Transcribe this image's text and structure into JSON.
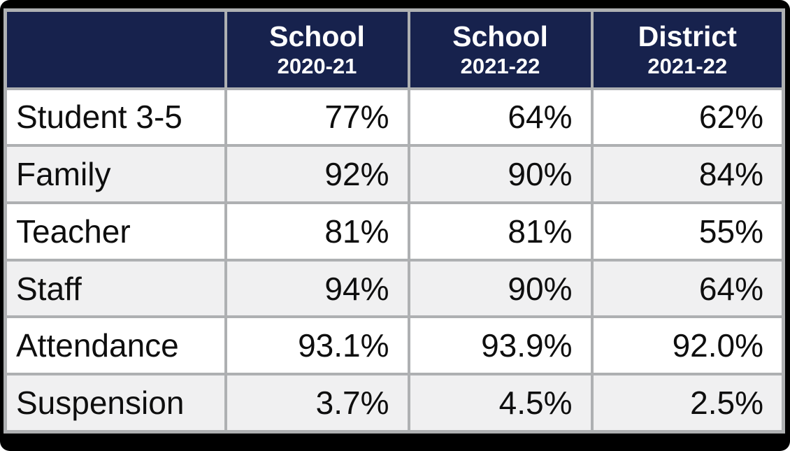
{
  "colors": {
    "header_bg": "#17224d",
    "header_text": "#ffffff",
    "row_bg": "#ffffff",
    "row_alt_bg": "#f0f0f1",
    "cell_border": "#aeb0b2",
    "frame_bg": "#000000",
    "body_text": "#0e0e0e"
  },
  "table": {
    "columns": [
      {
        "line1": "",
        "line2": ""
      },
      {
        "line1": "School",
        "line2": "2020-21"
      },
      {
        "line1": "School",
        "line2": "2021-22"
      },
      {
        "line1": "District",
        "line2": "2021-22"
      }
    ],
    "rows": [
      {
        "label": "Student 3-5",
        "values": [
          "77%",
          "64%",
          "62%"
        ]
      },
      {
        "label": "Family",
        "values": [
          "92%",
          "90%",
          "84%"
        ]
      },
      {
        "label": "Teacher",
        "values": [
          "81%",
          "81%",
          "55%"
        ]
      },
      {
        "label": "Staff",
        "values": [
          "94%",
          "90%",
          "64%"
        ]
      },
      {
        "label": "Attendance",
        "values": [
          "93.1%",
          "93.9%",
          "92.0%"
        ]
      },
      {
        "label": "Suspension",
        "values": [
          "3.7%",
          "4.5%",
          "2.5%"
        ]
      }
    ]
  },
  "chart_data": {
    "type": "table",
    "title": "",
    "columns": [
      "",
      "School 2020-21",
      "School 2021-22",
      "District 2021-22"
    ],
    "rows": [
      [
        "Student 3-5",
        "77%",
        "64%",
        "62%"
      ],
      [
        "Family",
        "92%",
        "90%",
        "84%"
      ],
      [
        "Teacher",
        "81%",
        "81%",
        "55%"
      ],
      [
        "Staff",
        "94%",
        "90%",
        "64%"
      ],
      [
        "Attendance",
        "93.1%",
        "93.9%",
        "92.0%"
      ],
      [
        "Suspension",
        "3.7%",
        "4.5%",
        "2.5%"
      ]
    ]
  }
}
